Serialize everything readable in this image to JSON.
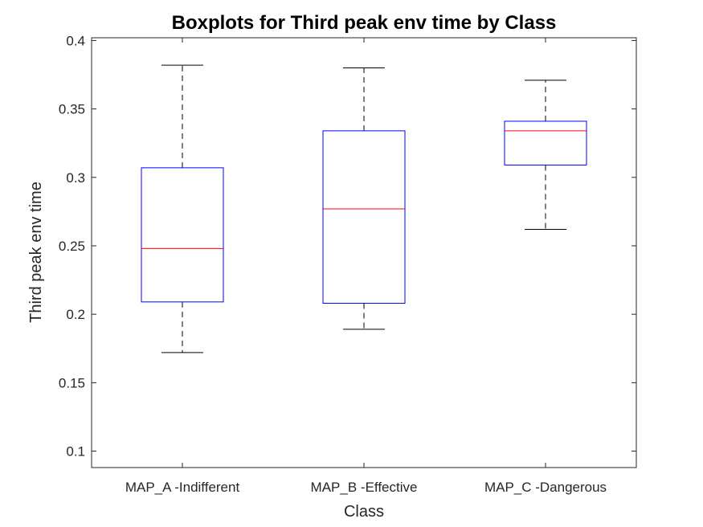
{
  "chart_data": {
    "type": "boxplot",
    "title": "Boxplots for Third peak env time by Class",
    "xlabel": "Class",
    "ylabel": "Third peak env time",
    "ylim": [
      0.088,
      0.402
    ],
    "yticks": [
      0.1,
      0.15,
      0.2,
      0.25,
      0.3,
      0.35,
      0.4
    ],
    "ytick_labels": [
      "0.1",
      "0.15",
      "0.2",
      "0.25",
      "0.3",
      "0.35",
      "0.4"
    ],
    "categories": [
      "MAP_A -Indifferent",
      "MAP_B -Effective",
      "MAP_C -Dangerous"
    ],
    "boxes": [
      {
        "category": "MAP_A -Indifferent",
        "whisker_low": 0.172,
        "q1": 0.209,
        "median": 0.248,
        "q3": 0.307,
        "whisker_high": 0.382
      },
      {
        "category": "MAP_B -Effective",
        "whisker_low": 0.189,
        "q1": 0.208,
        "median": 0.277,
        "q3": 0.334,
        "whisker_high": 0.38
      },
      {
        "category": "MAP_C -Dangerous",
        "whisker_low": 0.262,
        "q1": 0.309,
        "median": 0.334,
        "q3": 0.341,
        "whisker_high": 0.371
      }
    ],
    "grid": false,
    "colors": {
      "box": "#0000ff",
      "median": "#ff0000",
      "whisker": "#000000",
      "axis": "#262626"
    }
  }
}
